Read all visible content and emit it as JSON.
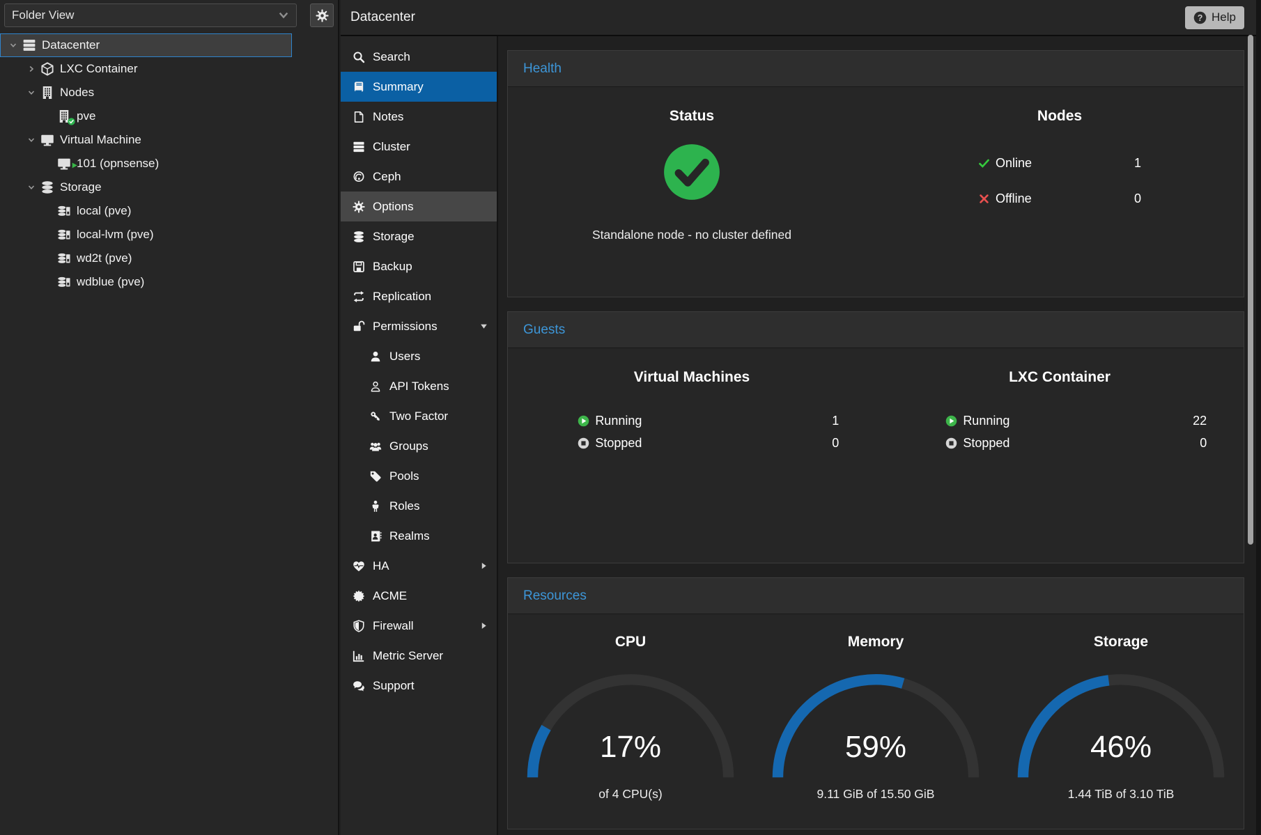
{
  "colors": {
    "accent_blue": "#3d96d8",
    "selection_blue": "#0b60a4",
    "gauge_blue": "#1568b0",
    "gauge_track": "#333333",
    "green": "#2db34e",
    "bright_green": "#35c93d",
    "red": "#e8504f"
  },
  "left_panel": {
    "view_selector": {
      "value": "Folder View"
    },
    "gear_icon": "gear",
    "tree": [
      {
        "label": "Datacenter",
        "icon": "server",
        "level": 0,
        "expander": "down",
        "selected": true
      },
      {
        "label": "LXC Container",
        "icon": "cube",
        "level": 1,
        "expander": "right"
      },
      {
        "label": "Nodes",
        "icon": "building",
        "level": 1,
        "expander": "down"
      },
      {
        "label": "pve",
        "icon": "building",
        "overlay": "check",
        "level": 2
      },
      {
        "label": "Virtual Machine",
        "icon": "monitor",
        "level": 1,
        "expander": "down"
      },
      {
        "label": "101 (opnsense)",
        "icon": "monitor",
        "overlay": "play",
        "level": 2
      },
      {
        "label": "Storage",
        "icon": "db",
        "level": 1,
        "expander": "down"
      },
      {
        "label": "local (pve)",
        "icon": "db-drive",
        "level": 2
      },
      {
        "label": "local-lvm (pve)",
        "icon": "db-drive",
        "level": 2
      },
      {
        "label": "wd2t (pve)",
        "icon": "db-drive",
        "level": 2
      },
      {
        "label": "wdblue (pve)",
        "icon": "db-drive",
        "level": 2
      }
    ]
  },
  "topbar": {
    "title": "Datacenter",
    "help_label": "Help",
    "help_icon": "help-circle"
  },
  "menu": {
    "items": [
      {
        "label": "Search",
        "icon": "search"
      },
      {
        "label": "Summary",
        "icon": "book",
        "selected": true
      },
      {
        "label": "Notes",
        "icon": "note"
      },
      {
        "label": "Cluster",
        "icon": "server"
      },
      {
        "label": "Ceph",
        "icon": "ceph"
      },
      {
        "label": "Options",
        "icon": "gear",
        "hovered": true
      },
      {
        "label": "Storage",
        "icon": "db"
      },
      {
        "label": "Backup",
        "icon": "floppy"
      },
      {
        "label": "Replication",
        "icon": "replication"
      },
      {
        "label": "Permissions",
        "icon": "lock-open",
        "caret": "down"
      },
      {
        "label": "Users",
        "icon": "user",
        "child": true
      },
      {
        "label": "API Tokens",
        "icon": "user-o",
        "child": true
      },
      {
        "label": "Two Factor",
        "icon": "key",
        "child": true
      },
      {
        "label": "Groups",
        "icon": "users",
        "child": true
      },
      {
        "label": "Pools",
        "icon": "tag",
        "child": true
      },
      {
        "label": "Roles",
        "icon": "person",
        "child": true
      },
      {
        "label": "Realms",
        "icon": "address-book",
        "child": true
      },
      {
        "label": "HA",
        "icon": "heartbeat",
        "caret": "right"
      },
      {
        "label": "ACME",
        "icon": "acme"
      },
      {
        "label": "Firewall",
        "icon": "shield",
        "caret": "right"
      },
      {
        "label": "Metric Server",
        "icon": "chart"
      },
      {
        "label": "Support",
        "icon": "chat"
      }
    ]
  },
  "health": {
    "title": "Health",
    "status": {
      "heading": "Status",
      "icon": "check-circle",
      "message": "Standalone node - no cluster defined"
    },
    "nodes": {
      "heading": "Nodes",
      "rows": [
        {
          "label": "Online",
          "value": "1",
          "icon": "check-small"
        },
        {
          "label": "Offline",
          "value": "0",
          "icon": "cross"
        }
      ]
    }
  },
  "guests": {
    "title": "Guests",
    "groups": [
      {
        "heading": "Virtual Machines",
        "rows": [
          {
            "label": "Running",
            "value": "1",
            "icon": "play-circle"
          },
          {
            "label": "Stopped",
            "value": "0",
            "icon": "stop-circle"
          }
        ]
      },
      {
        "heading": "LXC Container",
        "rows": [
          {
            "label": "Running",
            "value": "22",
            "icon": "play-circle"
          },
          {
            "label": "Stopped",
            "value": "0",
            "icon": "stop-circle"
          }
        ]
      }
    ]
  },
  "resources": {
    "title": "Resources",
    "gauges": [
      {
        "heading": "CPU",
        "percent": 17,
        "detail": "of 4 CPU(s)"
      },
      {
        "heading": "Memory",
        "percent": 59,
        "detail": "9.11 GiB of 15.50 GiB"
      },
      {
        "heading": "Storage",
        "percent": 46,
        "detail": "1.44 TiB of 3.10 TiB"
      }
    ]
  }
}
